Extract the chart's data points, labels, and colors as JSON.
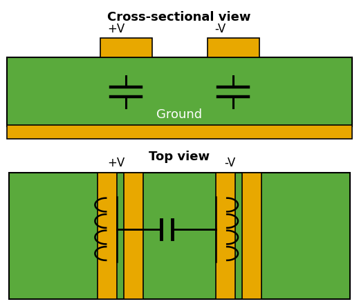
{
  "green": "#5aaa3c",
  "gold": "#e8a800",
  "black": "#000000",
  "white": "#ffffff",
  "bg": "#ffffff",
  "title1": "Cross-sectional view",
  "title2": "Top view",
  "label_pv": "+V",
  "label_nv": "-V",
  "label_ground": "Ground",
  "title_fontsize": 13,
  "label_fontsize": 12
}
